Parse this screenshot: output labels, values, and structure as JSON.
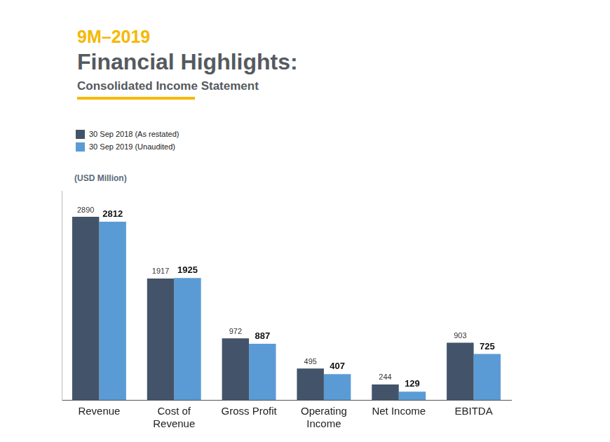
{
  "chart_data": {
    "type": "bar",
    "annotations": [
      "9M–2019"
    ],
    "title": "Financial Highlights:",
    "subtitle": "Consolidated Income Statement",
    "y_label": "(USD Million)",
    "categories": [
      "Revenue",
      [
        "Cost of",
        "Revenue"
      ],
      "Gross Profit",
      [
        "Operating",
        "Income"
      ],
      "Net Income",
      "EBITDA"
    ],
    "series": [
      {
        "name": "30 Sep 2018 (As restated)",
        "color": "#435369",
        "values": [
          2890,
          1917,
          972,
          495,
          244,
          903
        ]
      },
      {
        "name": "30 Sep 2019 (Unaudited)",
        "color": "#5b9bd5",
        "values": [
          2812,
          1925,
          887,
          407,
          129,
          725
        ]
      }
    ],
    "ylim": [
      0,
      3300
    ],
    "grid": false,
    "legend": "top-left",
    "data_labels": true,
    "tick_labels": "x"
  }
}
